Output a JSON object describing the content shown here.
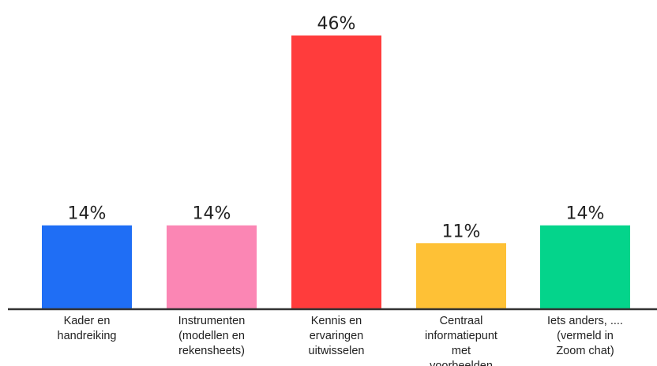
{
  "chart_data": {
    "type": "bar",
    "categories": [
      [
        "Kader en",
        "handreiking"
      ],
      [
        "Instrumenten",
        "(modellen en",
        "rekensheets)"
      ],
      [
        "Kennis en",
        "ervaringen",
        "uitwisselen"
      ],
      [
        "Centraal",
        "informatiepunt",
        "met",
        "voorbeelden"
      ],
      [
        "Iets anders, ....",
        "(vermeld in",
        "Zoom chat)"
      ]
    ],
    "values": [
      14,
      14,
      46,
      11,
      14
    ],
    "value_labels": [
      "14%",
      "14%",
      "46%",
      "11%",
      "14%"
    ],
    "colors": [
      "#1f6ef5",
      "#fb86b4",
      "#ff3c3c",
      "#fec136",
      "#04d48b"
    ],
    "unit": "%",
    "ylim": [
      0,
      46
    ],
    "grid": false,
    "legend": "none",
    "title": "",
    "xlabel": "",
    "ylabel": ""
  },
  "colors": {
    "axis": "#333333",
    "text": "#222222"
  }
}
